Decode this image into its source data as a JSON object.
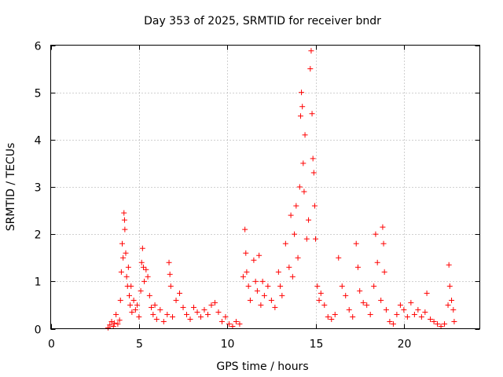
{
  "chart_data": {
    "type": "scatter",
    "title": "Day 353 of 2025, SRMTID for receiver bndr",
    "xlabel": "GPS time / hours",
    "ylabel": "SRMTID / TECUs",
    "xlim": [
      0,
      24.3
    ],
    "ylim": [
      0,
      6
    ],
    "xticks": [
      0,
      5,
      10,
      15,
      20
    ],
    "yticks": [
      0,
      1,
      2,
      3,
      4,
      5,
      6
    ],
    "grid": true,
    "marker": "+",
    "series": [
      {
        "name": "SRMTID",
        "color": "#ff0000",
        "points": [
          [
            3.25,
            0.02
          ],
          [
            3.35,
            0.08
          ],
          [
            3.45,
            0.15
          ],
          [
            3.55,
            0.05
          ],
          [
            3.6,
            0.12
          ],
          [
            3.7,
            0.3
          ],
          [
            3.8,
            0.1
          ],
          [
            3.9,
            0.18
          ],
          [
            3.95,
            0.6
          ],
          [
            4.0,
            1.2
          ],
          [
            4.05,
            1.8
          ],
          [
            4.1,
            1.5
          ],
          [
            4.15,
            2.45
          ],
          [
            4.18,
            2.3
          ],
          [
            4.2,
            2.1
          ],
          [
            4.25,
            1.6
          ],
          [
            4.3,
            1.1
          ],
          [
            4.35,
            0.9
          ],
          [
            4.4,
            1.3
          ],
          [
            4.45,
            0.7
          ],
          [
            4.5,
            0.5
          ],
          [
            4.55,
            0.9
          ],
          [
            4.6,
            0.35
          ],
          [
            4.7,
            0.6
          ],
          [
            4.8,
            0.4
          ],
          [
            4.9,
            0.5
          ],
          [
            5.0,
            0.25
          ],
          [
            5.1,
            0.8
          ],
          [
            5.15,
            1.4
          ],
          [
            5.2,
            1.7
          ],
          [
            5.25,
            1.3
          ],
          [
            5.3,
            1.0
          ],
          [
            5.4,
            1.25
          ],
          [
            5.5,
            1.1
          ],
          [
            5.6,
            0.7
          ],
          [
            5.7,
            0.45
          ],
          [
            5.8,
            0.3
          ],
          [
            5.9,
            0.5
          ],
          [
            6.0,
            0.2
          ],
          [
            6.2,
            0.4
          ],
          [
            6.4,
            0.15
          ],
          [
            6.6,
            0.3
          ],
          [
            6.7,
            1.4
          ],
          [
            6.75,
            1.15
          ],
          [
            6.8,
            0.9
          ],
          [
            6.9,
            0.25
          ],
          [
            7.1,
            0.6
          ],
          [
            7.3,
            0.75
          ],
          [
            7.5,
            0.45
          ],
          [
            7.7,
            0.3
          ],
          [
            7.9,
            0.2
          ],
          [
            8.1,
            0.45
          ],
          [
            8.3,
            0.35
          ],
          [
            8.5,
            0.25
          ],
          [
            8.7,
            0.4
          ],
          [
            8.9,
            0.3
          ],
          [
            9.1,
            0.5
          ],
          [
            9.3,
            0.55
          ],
          [
            9.5,
            0.35
          ],
          [
            9.7,
            0.15
          ],
          [
            9.9,
            0.25
          ],
          [
            10.1,
            0.1
          ],
          [
            10.3,
            0.05
          ],
          [
            10.5,
            0.15
          ],
          [
            10.7,
            0.1
          ],
          [
            10.9,
            1.1
          ],
          [
            11.0,
            2.1
          ],
          [
            11.05,
            1.6
          ],
          [
            11.1,
            1.2
          ],
          [
            11.2,
            0.9
          ],
          [
            11.3,
            0.6
          ],
          [
            11.5,
            1.45
          ],
          [
            11.6,
            1.0
          ],
          [
            11.7,
            0.8
          ],
          [
            11.8,
            1.55
          ],
          [
            11.9,
            0.5
          ],
          [
            12.0,
            1.0
          ],
          [
            12.1,
            0.7
          ],
          [
            12.3,
            0.9
          ],
          [
            12.5,
            0.6
          ],
          [
            12.7,
            0.45
          ],
          [
            12.9,
            1.2
          ],
          [
            13.0,
            0.9
          ],
          [
            13.1,
            0.7
          ],
          [
            13.3,
            1.8
          ],
          [
            13.5,
            1.3
          ],
          [
            13.6,
            2.4
          ],
          [
            13.7,
            1.1
          ],
          [
            13.8,
            2.0
          ],
          [
            13.9,
            2.6
          ],
          [
            14.0,
            1.5
          ],
          [
            14.1,
            3.0
          ],
          [
            14.15,
            4.5
          ],
          [
            14.2,
            5.0
          ],
          [
            14.25,
            4.7
          ],
          [
            14.3,
            3.5
          ],
          [
            14.35,
            2.9
          ],
          [
            14.4,
            4.1
          ],
          [
            14.5,
            1.9
          ],
          [
            14.6,
            2.3
          ],
          [
            14.7,
            5.5
          ],
          [
            14.75,
            5.88
          ],
          [
            14.8,
            4.55
          ],
          [
            14.85,
            3.6
          ],
          [
            14.9,
            3.3
          ],
          [
            14.95,
            2.6
          ],
          [
            15.0,
            1.9
          ],
          [
            15.1,
            0.9
          ],
          [
            15.2,
            0.6
          ],
          [
            15.3,
            0.75
          ],
          [
            15.5,
            0.5
          ],
          [
            15.7,
            0.25
          ],
          [
            15.9,
            0.2
          ],
          [
            16.1,
            0.3
          ],
          [
            16.3,
            1.5
          ],
          [
            16.5,
            0.9
          ],
          [
            16.7,
            0.7
          ],
          [
            16.9,
            0.4
          ],
          [
            17.1,
            0.25
          ],
          [
            17.3,
            1.8
          ],
          [
            17.4,
            1.3
          ],
          [
            17.5,
            0.8
          ],
          [
            17.7,
            0.55
          ],
          [
            17.9,
            0.5
          ],
          [
            18.1,
            0.3
          ],
          [
            18.3,
            0.9
          ],
          [
            18.4,
            2.0
          ],
          [
            18.5,
            1.4
          ],
          [
            18.7,
            0.6
          ],
          [
            18.8,
            2.15
          ],
          [
            18.85,
            1.8
          ],
          [
            18.9,
            1.2
          ],
          [
            19.0,
            0.4
          ],
          [
            19.2,
            0.15
          ],
          [
            19.4,
            0.1
          ],
          [
            19.6,
            0.3
          ],
          [
            19.8,
            0.5
          ],
          [
            20.0,
            0.4
          ],
          [
            20.2,
            0.25
          ],
          [
            20.4,
            0.55
          ],
          [
            20.6,
            0.3
          ],
          [
            20.8,
            0.4
          ],
          [
            21.0,
            0.25
          ],
          [
            21.2,
            0.35
          ],
          [
            21.3,
            0.75
          ],
          [
            21.5,
            0.2
          ],
          [
            21.7,
            0.15
          ],
          [
            21.9,
            0.1
          ],
          [
            22.1,
            0.05
          ],
          [
            22.3,
            0.1
          ],
          [
            22.5,
            0.5
          ],
          [
            22.55,
            1.35
          ],
          [
            22.6,
            0.9
          ],
          [
            22.7,
            0.6
          ],
          [
            22.8,
            0.4
          ],
          [
            22.85,
            0.15
          ]
        ]
      }
    ]
  }
}
